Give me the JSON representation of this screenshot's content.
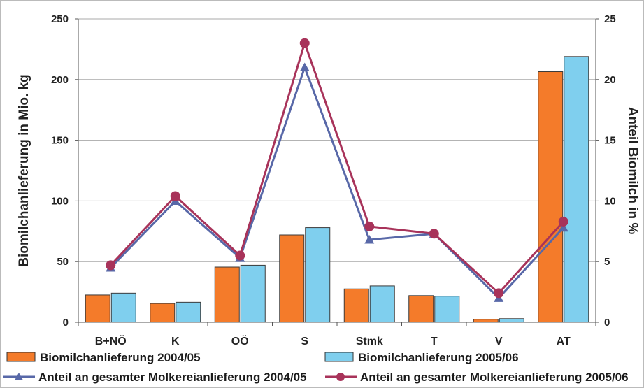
{
  "chart_data": {
    "type": "bar",
    "categories": [
      "B+NÖ",
      "K",
      "OÖ",
      "S",
      "Stmk",
      "T",
      "V",
      "AT"
    ],
    "ylabel": "Biomilchanlieferung in Mio. kg",
    "ylim": [
      0,
      250
    ],
    "yticks": [
      0,
      50,
      100,
      150,
      200,
      250
    ],
    "y2label": "Anteil Biomilch in %",
    "y2lim": [
      0,
      25
    ],
    "y2ticks": [
      0,
      5,
      10,
      15,
      20,
      25
    ],
    "grid": true,
    "legend_position": "bottom",
    "series": [
      {
        "name": "Biomilchanlieferung 2004/05",
        "kind": "bar",
        "axis": "left",
        "color": "#f47b2a",
        "values": [
          22.5,
          15.5,
          45.5,
          72,
          27.5,
          22,
          2.5,
          206.5
        ]
      },
      {
        "name": "Biomilchanlieferung 2005/06",
        "kind": "bar",
        "axis": "left",
        "color": "#7fcfee",
        "values": [
          24,
          16.5,
          47,
          78,
          30,
          21.5,
          3,
          219
        ]
      },
      {
        "name": "Anteil an gesamter Molkereianlieferung 2004/05",
        "kind": "line",
        "axis": "right",
        "marker": "triangle",
        "color": "#5868a8",
        "values": [
          4.5,
          10,
          5.3,
          21,
          6.8,
          7.3,
          2.0,
          7.8
        ]
      },
      {
        "name": "Anteil an gesamter Molkereianlieferung 2005/06",
        "kind": "line",
        "axis": "right",
        "marker": "circle",
        "color": "#a8335a",
        "values": [
          4.7,
          10.4,
          5.5,
          23,
          7.9,
          7.3,
          2.4,
          8.3
        ]
      }
    ]
  }
}
